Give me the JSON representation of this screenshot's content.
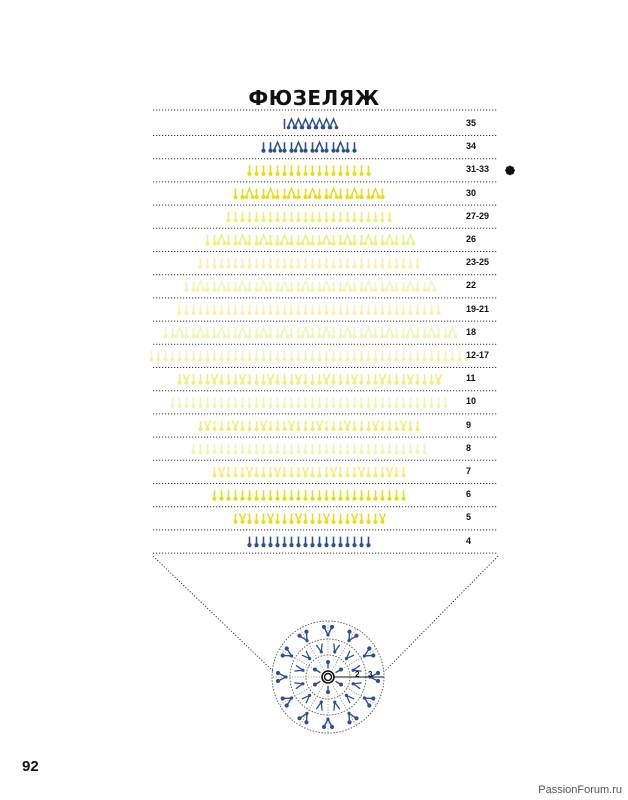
{
  "title": "ФЮЗЕЛЯЖ",
  "page_number": "92",
  "watermark": "PassionForum.ru",
  "colors": {
    "dark_blue": "#2b4f96",
    "yellow": "#e8dc18",
    "light_yellow": "#f2ec7a",
    "pale_yellow": "#f6f2b0",
    "line": "#333333"
  },
  "rows": [
    {
      "label": "35",
      "count": 8,
      "color": "dark_blue",
      "pattern": "decrease",
      "marker": false
    },
    {
      "label": "34",
      "count": 14,
      "color": "dark_blue",
      "pattern": "alt",
      "marker": false
    },
    {
      "label": "31-33",
      "count": 18,
      "color": "yellow",
      "pattern": "stitch",
      "marker": true
    },
    {
      "label": "30",
      "count": 22,
      "color": "yellow",
      "pattern": "alt",
      "marker": false
    },
    {
      "label": "27-29",
      "count": 24,
      "color": "light_yellow",
      "pattern": "stitch",
      "marker": false
    },
    {
      "label": "26",
      "count": 30,
      "color": "light_yellow",
      "pattern": "alt",
      "marker": false
    },
    {
      "label": "23-25",
      "count": 32,
      "color": "pale_yellow",
      "pattern": "stitch",
      "marker": false
    },
    {
      "label": "22",
      "count": 36,
      "color": "pale_yellow",
      "pattern": "alt",
      "marker": false
    },
    {
      "label": "19-21",
      "count": 38,
      "color": "pale_yellow",
      "pattern": "stitch",
      "marker": false
    },
    {
      "label": "18",
      "count": 42,
      "color": "pale_yellow",
      "pattern": "alt",
      "marker": false
    },
    {
      "label": "12-17",
      "count": 46,
      "color": "pale_yellow",
      "pattern": "stitch",
      "marker": false
    },
    {
      "label": "11",
      "count": 38,
      "color": "light_yellow",
      "pattern": "increase",
      "marker": false
    },
    {
      "label": "10",
      "count": 40,
      "color": "pale_yellow",
      "pattern": "stitch",
      "marker": false
    },
    {
      "label": "9",
      "count": 32,
      "color": "light_yellow",
      "pattern": "increase",
      "marker": false
    },
    {
      "label": "8",
      "count": 34,
      "color": "pale_yellow",
      "pattern": "stitch",
      "marker": false
    },
    {
      "label": "7",
      "count": 28,
      "color": "light_yellow",
      "pattern": "increase",
      "marker": false
    },
    {
      "label": "6",
      "count": 28,
      "color": "yellow",
      "pattern": "stitch",
      "marker": false
    },
    {
      "label": "5",
      "count": 22,
      "color": "yellow",
      "pattern": "increase",
      "marker": false
    },
    {
      "label": "4",
      "count": 18,
      "color": "dark_blue",
      "pattern": "stitch",
      "marker": false
    }
  ],
  "ring_labels": [
    "2",
    "3"
  ],
  "icons": {
    "marker": "flower-marker-icon",
    "center": "magic-ring-icon"
  }
}
